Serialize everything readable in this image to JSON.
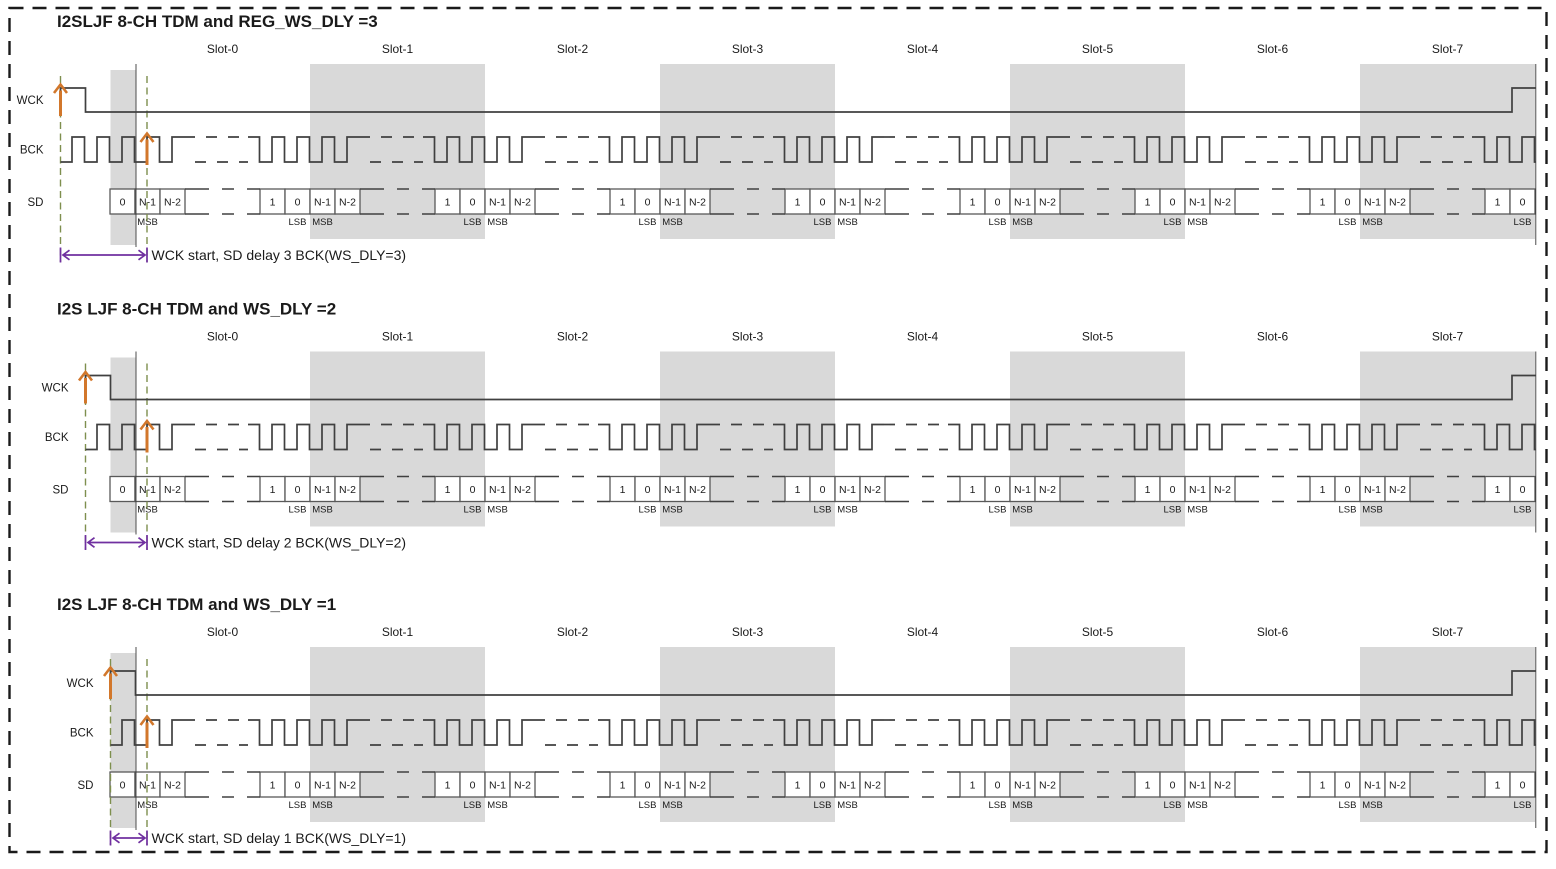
{
  "figure": {
    "slot_labels": [
      "Slot-0",
      "Slot-1",
      "Slot-2",
      "Slot-3",
      "Slot-4",
      "Slot-5",
      "Slot-6",
      "Slot-7"
    ],
    "signal_labels": [
      "WCK",
      "BCK",
      "SD"
    ],
    "sd": {
      "start_group": [
        "0",
        "N-1",
        "N-2"
      ],
      "mid_group": [
        "1",
        "0",
        "N-1",
        "N-2"
      ],
      "end_group": [
        "1",
        "0"
      ],
      "msb_label": "MSB",
      "lsb_label": "LSB"
    },
    "panels": [
      {
        "title": "I2SLJF 8-CH TDM and REG_WS_DLY =3",
        "ws_dly": 3,
        "annotation": "WCK start, SD delay 3 BCK(WS_DLY=3)"
      },
      {
        "title": "I2S LJF 8-CH TDM and WS_DLY =2",
        "ws_dly": 2,
        "annotation": "WCK start, SD delay 2 BCK(WS_DLY=2)"
      },
      {
        "title": "I2S LJF 8-CH TDM and WS_DLY =1",
        "ws_dly": 1,
        "annotation": "WCK start, SD delay 1 BCK(WS_DLY=1)"
      }
    ],
    "colors": {
      "highlight_band": "#D9D9D9",
      "waveform": "#404040",
      "box_border": "#595959",
      "box_fill": "#FFFFFF",
      "orange_arrow": "#D2772B",
      "purple_arrow": "#7030A0",
      "green_dash": "#7E8F4E",
      "frame_line": "#3A3A3A",
      "border": "#1A1A1A",
      "text": "#1A1A1A"
    }
  }
}
